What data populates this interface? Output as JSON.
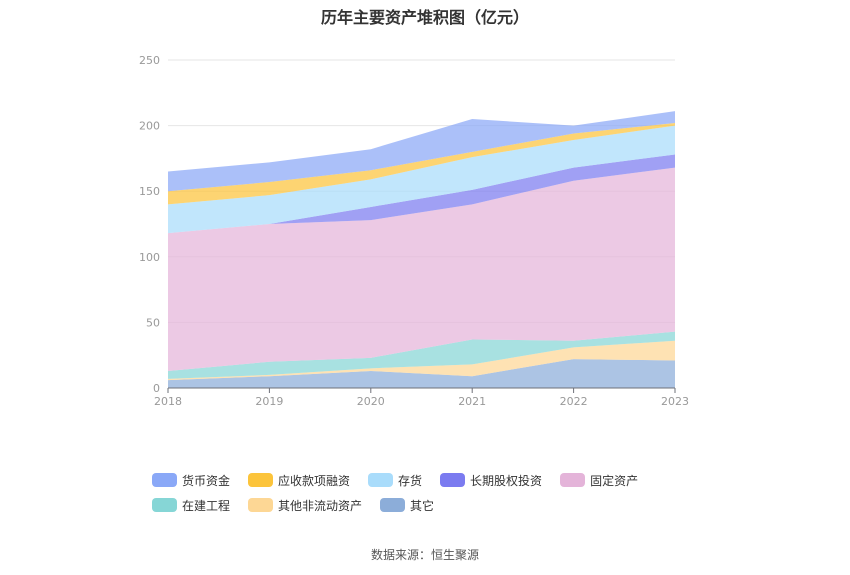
{
  "chart_data": {
    "type": "area",
    "stacked": true,
    "title": "历年主要资产堆积图（亿元）",
    "x": [
      "2018",
      "2019",
      "2020",
      "2021",
      "2022",
      "2023"
    ],
    "ylim": [
      0,
      250
    ],
    "yticks": [
      0,
      50,
      100,
      150,
      200,
      250
    ],
    "grid": true,
    "legend_position": "bottom",
    "series": [
      {
        "name": "货币资金",
        "color": "#8aa8f7",
        "values": [
          15,
          15,
          16,
          25,
          6,
          9
        ]
      },
      {
        "name": "应收款项融资",
        "color": "#fcc43b",
        "values": [
          10,
          10,
          7,
          4,
          5,
          2
        ]
      },
      {
        "name": "存货",
        "color": "#a9dcfb",
        "values": [
          22,
          22,
          21,
          25,
          21,
          22
        ]
      },
      {
        "name": "长期股权投资",
        "color": "#7b7bf0",
        "values": [
          0,
          0,
          10,
          11,
          10,
          10
        ]
      },
      {
        "name": "固定资产",
        "color": "#e4b4d9",
        "values": [
          105,
          105,
          105,
          103,
          122,
          125
        ]
      },
      {
        "name": "在建工程",
        "color": "#86d6d6",
        "values": [
          6,
          10,
          8,
          19,
          5,
          7
        ]
      },
      {
        "name": "其他非流动资产",
        "color": "#fdd795",
        "values": [
          1,
          1,
          2,
          9,
          9,
          15
        ]
      },
      {
        "name": "其它",
        "color": "#8cadd9",
        "values": [
          6,
          9,
          13,
          9,
          22,
          21
        ]
      }
    ]
  },
  "source": "数据来源：恒生聚源"
}
